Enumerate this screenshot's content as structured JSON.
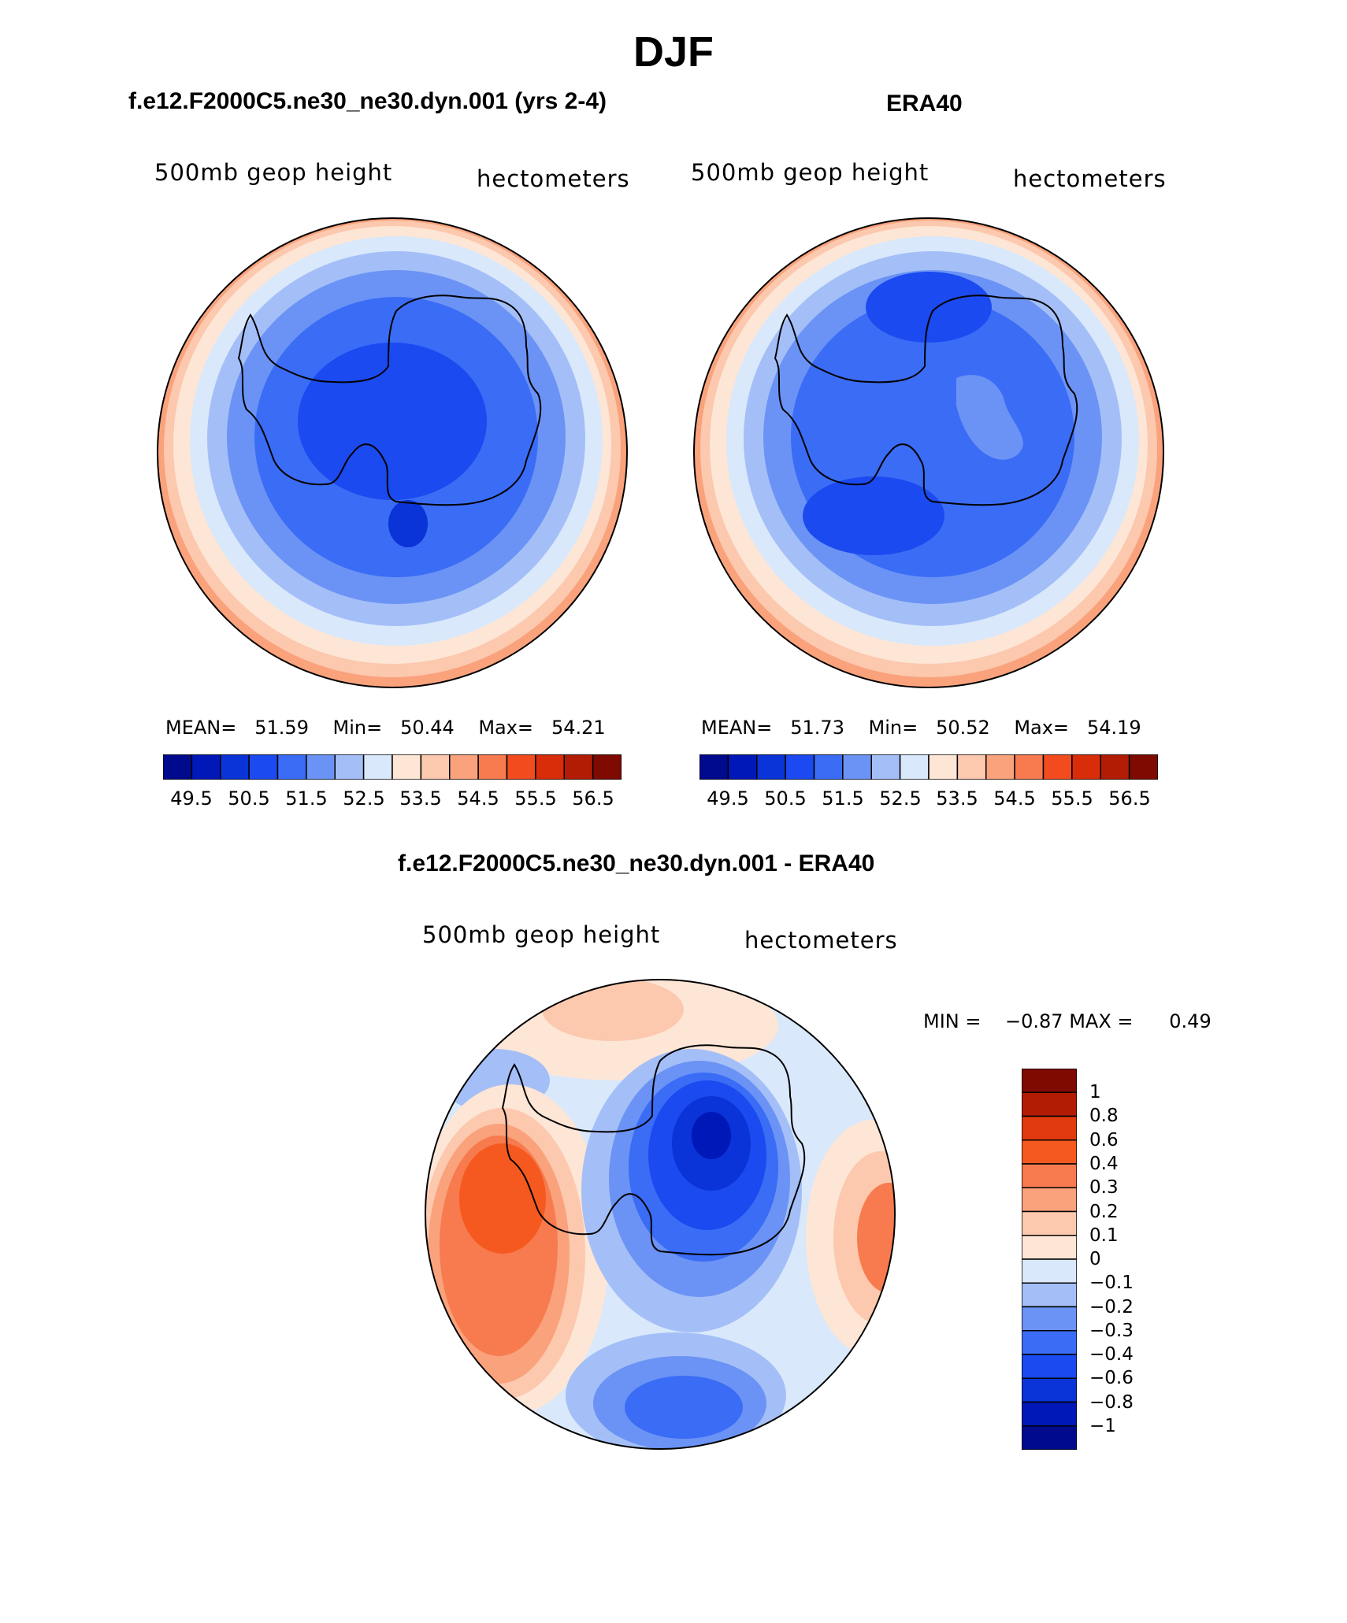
{
  "page": {
    "title": "DJF"
  },
  "panels": {
    "model": {
      "title": "f.e12.F2000C5.ne30_ne30.dyn.001 (yrs 2-4)",
      "left_header": "500mb geop height",
      "right_header": "hectometers",
      "mean_label": "MEAN=",
      "mean": "51.59",
      "min_label": "Min=",
      "min": "50.44",
      "max_label": "Max=",
      "max": "54.21"
    },
    "obs": {
      "title": "ERA40",
      "left_header": "500mb geop height",
      "right_header": "hectometers",
      "mean_label": "MEAN=",
      "mean": "51.73",
      "min_label": "Min=",
      "min": "50.52",
      "max_label": "Max=",
      "max": "54.19"
    },
    "diff": {
      "title": "f.e12.F2000C5.ne30_ne30.dyn.001 - ERA40",
      "left_header": "500mb geop height",
      "right_header": "hectometers",
      "min_label": "MIN =",
      "min": "−0.87",
      "max_label": "MAX =",
      "max": "0.49"
    }
  },
  "colorbar_abs": {
    "ticks": [
      "49.5",
      "50.5",
      "51.5",
      "52.5",
      "53.5",
      "54.5",
      "55.5",
      "56.5"
    ],
    "colors": [
      "#000a8c",
      "#0018b8",
      "#0a33d8",
      "#1a4af0",
      "#3a6cf5",
      "#6b93f5",
      "#a4bff7",
      "#d9e8fb",
      "#fde6d6",
      "#fcc8ae",
      "#f9a27c",
      "#f77b4e",
      "#f24c1e",
      "#d92c08",
      "#b21c04",
      "#7e0a02"
    ]
  },
  "colorbar_diff": {
    "labels": [
      "1",
      "0.8",
      "0.6",
      "0.4",
      "0.3",
      "0.2",
      "0.1",
      "0",
      "−0.1",
      "−0.2",
      "−0.3",
      "−0.4",
      "−0.6",
      "−0.8",
      "−1"
    ],
    "colors": [
      "#7e0a02",
      "#b21c04",
      "#e03a0e",
      "#f6591f",
      "#f77b4e",
      "#f9a27c",
      "#fcc8ae",
      "#fde6d6",
      "#d9e8fb",
      "#a4bff7",
      "#6b93f5",
      "#3a6cf5",
      "#1a4af0",
      "#0a33d8",
      "#0018b8",
      "#000a8c"
    ]
  },
  "chart_data": [
    {
      "type": "heatmap",
      "title": "f.e12.F2000C5.ne30_ne30.dyn.001 (yrs 2-4)",
      "variable": "500mb geop height",
      "units": "hectometers",
      "season": "DJF",
      "projection": "south polar stereographic",
      "stats": {
        "mean": 51.59,
        "min": 50.44,
        "max": 54.21
      },
      "contour_levels": [
        49.5,
        50,
        50.5,
        51,
        51.5,
        52,
        52.5,
        53,
        53.5,
        54,
        54.5,
        55,
        55.5,
        56,
        56.5
      ]
    },
    {
      "type": "heatmap",
      "title": "ERA40",
      "variable": "500mb geop height",
      "units": "hectometers",
      "season": "DJF",
      "projection": "south polar stereographic",
      "stats": {
        "mean": 51.73,
        "min": 50.52,
        "max": 54.19
      },
      "contour_levels": [
        49.5,
        50,
        50.5,
        51,
        51.5,
        52,
        52.5,
        53,
        53.5,
        54,
        54.5,
        55,
        55.5,
        56,
        56.5
      ]
    },
    {
      "type": "heatmap",
      "title": "f.e12.F2000C5.ne30_ne30.dyn.001 - ERA40",
      "variable": "500mb geop height",
      "units": "hectometers",
      "season": "DJF",
      "projection": "south polar stereographic",
      "stats": {
        "min": -0.87,
        "max": 0.49
      },
      "contour_levels": [
        -1,
        -0.8,
        -0.6,
        -0.4,
        -0.3,
        -0.2,
        -0.1,
        0,
        0.1,
        0.2,
        0.3,
        0.4,
        0.6,
        0.8,
        1
      ]
    }
  ]
}
